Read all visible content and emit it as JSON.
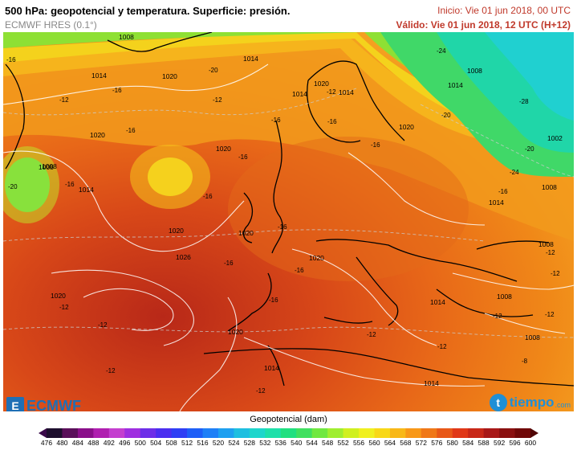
{
  "header": {
    "title": "500 hPa: geopotencial y temperatura. Superficie: presión.",
    "model": "ECMWF HRES (0.1°)",
    "init": "Inicio: Vie 01 jun 2018, 00 UTC",
    "valid": "Válido: Vie 01 jun 2018, 12 UTC (H+12)"
  },
  "colorbar": {
    "title": "Geopotencial (dam)",
    "ticks": [
      "476",
      "480",
      "484",
      "488",
      "492",
      "496",
      "500",
      "504",
      "508",
      "512",
      "516",
      "520",
      "524",
      "528",
      "532",
      "536",
      "540",
      "544",
      "548",
      "552",
      "556",
      "560",
      "564",
      "568",
      "572",
      "576",
      "580",
      "584",
      "588",
      "592",
      "596",
      "600"
    ],
    "colors": [
      "#1e0f2e",
      "#5a0f5a",
      "#8a0f8a",
      "#b01fb0",
      "#c43fcf",
      "#9f2fe0",
      "#6d2fe8",
      "#4b2ff0",
      "#2f3ff5",
      "#1f5ff7",
      "#1f80f7",
      "#1fa0f0",
      "#1fbfe0",
      "#1fd6cc",
      "#1fe0aa",
      "#20e080",
      "#40e060",
      "#70e840",
      "#a0ee30",
      "#d0f020",
      "#f0f020",
      "#f8d818",
      "#f8b818",
      "#f89818",
      "#f07818",
      "#e85818",
      "#e03818",
      "#c82818",
      "#a81818",
      "#8a1010",
      "#700808"
    ]
  },
  "map": {
    "pressure_labels": [
      "1008",
      "1014",
      "1020",
      "1020",
      "1020",
      "1014",
      "1008",
      "1008",
      "1020",
      "1014",
      "1020",
      "1020",
      "1014",
      "1014",
      "1020",
      "1026",
      "1020",
      "1020",
      "1020",
      "1014",
      "1014",
      "1014",
      "1008",
      "1008",
      "1008",
      "1008",
      "1002",
      "1008",
      "1014",
      "1014"
    ],
    "temp_labels": [
      "-16",
      "-20",
      "-16",
      "-12",
      "-12",
      "-16",
      "-16",
      "-16",
      "-16",
      "-16",
      "-12",
      "-16",
      "-16",
      "-16",
      "-16",
      "-12",
      "-12",
      "-12",
      "-12",
      "-12",
      "-20",
      "-24",
      "-28",
      "-20",
      "-20",
      "-24",
      "-16",
      "-16",
      "-12",
      "-12",
      "-12",
      "-12",
      "-8",
      "-12",
      "-16"
    ]
  },
  "logos": {
    "ecmwf": "ECMWF",
    "tiempo": "tiempo",
    "tiempo_domain": ".com"
  }
}
